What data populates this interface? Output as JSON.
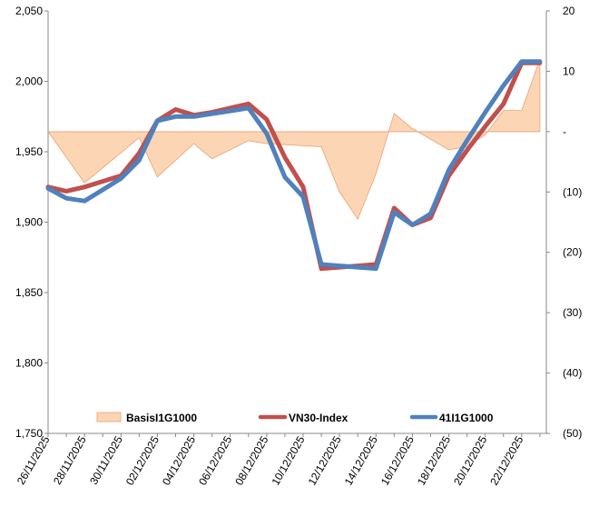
{
  "chart_data": {
    "type": "line",
    "title": "",
    "xlabel": "",
    "ylabel": "",
    "y_left_lim": [
      1750,
      2050
    ],
    "y_right_lim": [
      -50,
      20
    ],
    "y_left_ticks": [
      1750,
      1800,
      1850,
      1900,
      1950,
      2000,
      2050
    ],
    "y_left_tick_labels": [
      "1,750",
      "1,800",
      "1,850",
      "1,900",
      "1,950",
      "2,000",
      "2,050"
    ],
    "y_right_ticks": [
      -50,
      -40,
      -30,
      -20,
      -10,
      0,
      10,
      20
    ],
    "y_right_tick_labels": [
      "(50)",
      "(40)",
      "(30)",
      "(20)",
      "(10)",
      "-",
      "10",
      "20"
    ],
    "x_tick_labels": [
      "26/11/2025",
      "28/11/2025",
      "30/11/2025",
      "02/12/2025",
      "04/12/2025",
      "06/12/2025",
      "08/12/2025",
      "10/12/2025",
      "12/12/2025",
      "14/12/2025",
      "16/12/2025",
      "18/12/2025",
      "20/12/2025",
      "22/12/2025"
    ],
    "x_day_span": 27,
    "legend_position": "bottom-inside",
    "series": [
      {
        "name": "BasisI1G1000",
        "type": "area",
        "axis": "right",
        "color": "#FCD5B5",
        "x": [
          0,
          2,
          5,
          6,
          8,
          9,
          11,
          12,
          15,
          16,
          17,
          18,
          19,
          20,
          22,
          23,
          24,
          25,
          26,
          27
        ],
        "values": [
          0,
          -8.5,
          -1,
          -7.5,
          -2,
          -4.5,
          -1.5,
          -2,
          -2.5,
          -10,
          -14.5,
          -7,
          3,
          0.5,
          -3,
          -2.5,
          -0.5,
          3.5,
          3.5,
          12
        ]
      },
      {
        "name": "VN30-Index",
        "type": "line",
        "axis": "left",
        "color": "#C0504D",
        "x": [
          0,
          1,
          2,
          3,
          4,
          5,
          6,
          7,
          8,
          9,
          10,
          11,
          12,
          13,
          14,
          15,
          16,
          17,
          18,
          19,
          20,
          21,
          22,
          23,
          24,
          25,
          26,
          27
        ],
        "values": [
          1925,
          1922,
          1925,
          1929,
          1933,
          1949,
          1972,
          1980,
          1976,
          1978,
          1981,
          1984,
          1973,
          1946,
          1925,
          1867,
          1868,
          1869,
          1870,
          1910,
          1898,
          1903,
          1933,
          1951,
          1968,
          1984,
          2013,
          2013
        ]
      },
      {
        "name": "41I1G1000",
        "type": "line",
        "axis": "left",
        "color": "#4F81BD",
        "x": [
          0,
          1,
          2,
          3,
          4,
          5,
          6,
          7,
          8,
          9,
          10,
          11,
          12,
          13,
          14,
          15,
          16,
          17,
          18,
          19,
          20,
          21,
          22,
          23,
          24,
          25,
          26,
          27
        ],
        "values": [
          1924,
          1917,
          1915,
          1923,
          1931,
          1944,
          1972,
          1975,
          1975,
          1977,
          1979,
          1981,
          1963,
          1932,
          1918,
          1870,
          1869,
          1868,
          1867,
          1907,
          1898,
          1906,
          1937,
          1958,
          1978,
          1997,
          2014,
          2014
        ]
      }
    ],
    "x_end": 27
  }
}
